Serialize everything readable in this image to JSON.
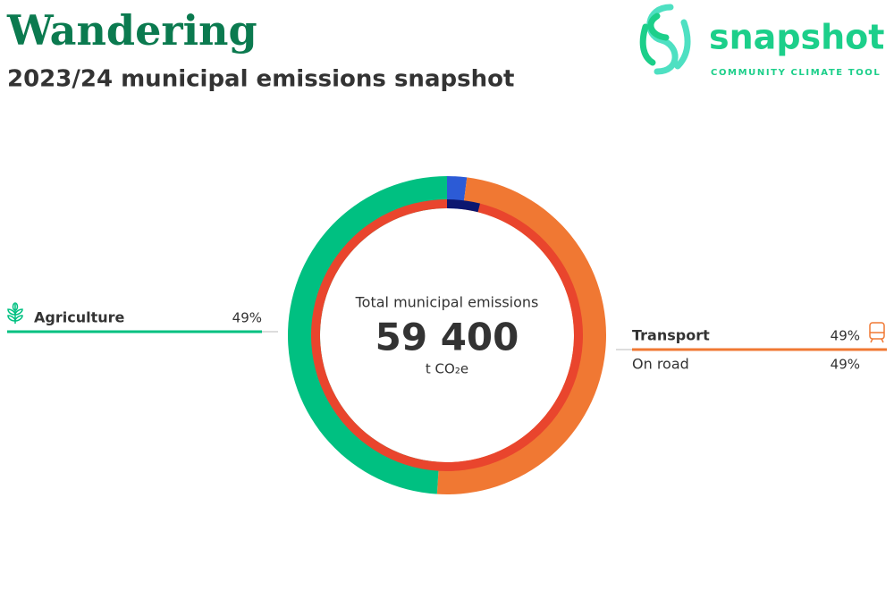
{
  "branding": {
    "logo_text": "snapshot",
    "tagline": "COMMUNITY CLIMATE TOOL"
  },
  "chart_data": {
    "type": "donut",
    "title": "Wandering",
    "subtitle": "2023/24 municipal emissions snapshot",
    "center_title": "Total municipal emissions",
    "total": 59400,
    "total_label": "59 400",
    "unit": "t CO₂e",
    "sectors": {
      "categories": [
        null,
        "Transport",
        "Agriculture"
      ],
      "values": [
        2,
        49,
        49
      ],
      "value_labels": [
        null,
        "49%",
        "49%"
      ],
      "colors": [
        "#2c5bd6",
        "#f07833",
        "#00c081"
      ]
    },
    "subsectors": {
      "categories": [
        null,
        "On road"
      ],
      "values": [
        2,
        49
      ],
      "value_labels": [
        null,
        "49%"
      ],
      "colors": [
        "#0b1670",
        "#e9452d"
      ]
    }
  }
}
